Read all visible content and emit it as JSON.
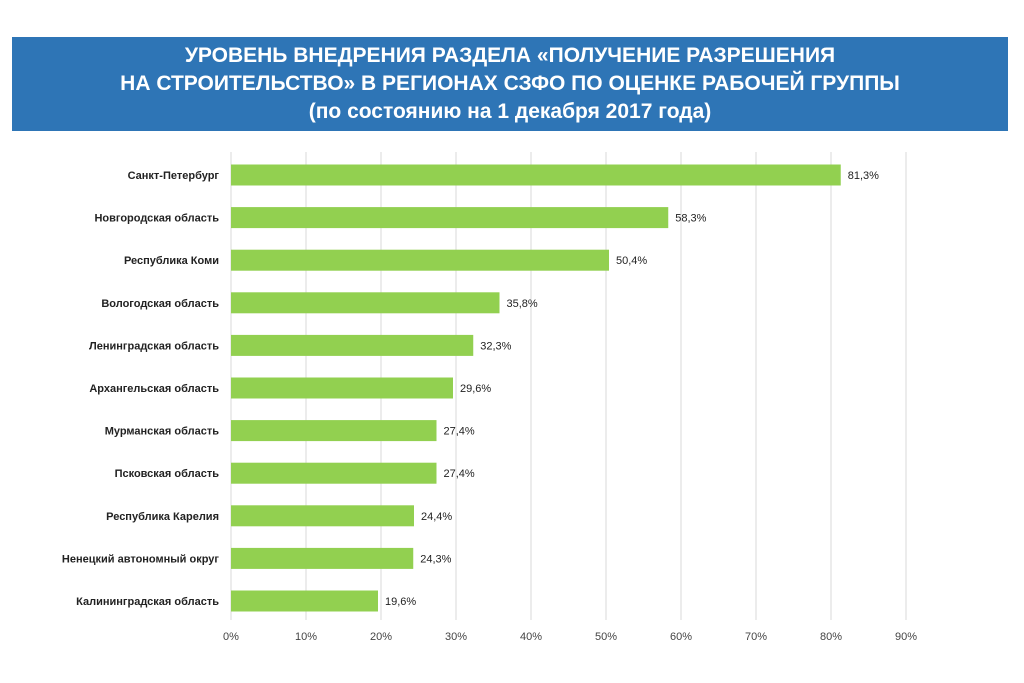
{
  "colors": {
    "banner": "#2e75b6",
    "bar": "#92d050",
    "grid": "#d9d9d9",
    "text": "#222222"
  },
  "chart_data": {
    "type": "bar",
    "orientation": "horizontal",
    "title_lines": [
      "УРОВЕНЬ ВНЕДРЕНИЯ РАЗДЕЛА «ПОЛУЧЕНИЕ РАЗРЕШЕНИЯ",
      "НА СТРОИТЕЛЬСТВО» В РЕГИОНАХ СЗФО ПО ОЦЕНКЕ РАБОЧЕЙ ГРУППЫ",
      "(по состоянию на 1 декабря 2017 года)"
    ],
    "categories": [
      "Санкт-Петербург",
      "Новгородская область",
      "Республика Коми",
      "Вологодская область",
      "Ленинградская область",
      "Архангельская область",
      "Мурманская область",
      "Псковская область",
      "Республика Карелия",
      "Ненецкий автономный округ",
      "Калининградская область"
    ],
    "values": [
      81.3,
      58.3,
      50.4,
      35.8,
      32.3,
      29.6,
      27.4,
      27.4,
      24.4,
      24.3,
      19.6
    ],
    "value_labels": [
      "81,3%",
      "58,3%",
      "50,4%",
      "35,8%",
      "32,3%",
      "29,6%",
      "27,4%",
      "27,4%",
      "24,4%",
      "24,3%",
      "19,6%"
    ],
    "xlim": [
      0,
      90
    ],
    "xticks": [
      0,
      10,
      20,
      30,
      40,
      50,
      60,
      70,
      80,
      90
    ],
    "xtick_labels": [
      "0%",
      "10%",
      "20%",
      "30%",
      "40%",
      "50%",
      "60%",
      "70%",
      "80%",
      "90%"
    ],
    "grid": true,
    "legend": false
  }
}
